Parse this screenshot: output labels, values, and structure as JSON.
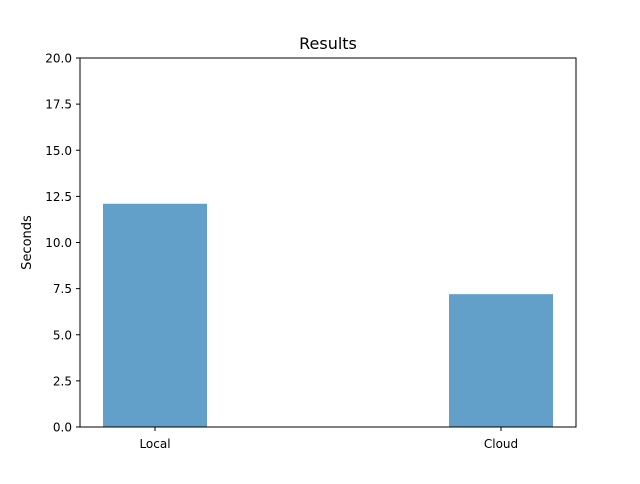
{
  "chart_data": {
    "type": "bar",
    "title": "Results",
    "xlabel": "",
    "ylabel": "Seconds",
    "categories": [
      "Local",
      "Cloud"
    ],
    "values": [
      12.1,
      7.2
    ],
    "ylim": [
      0,
      20
    ],
    "yticks": [
      "0.0",
      "2.5",
      "5.0",
      "7.5",
      "10.0",
      "12.5",
      "15.0",
      "17.5",
      "20.0"
    ],
    "grid": false,
    "bar_color": "#62a0ca"
  }
}
